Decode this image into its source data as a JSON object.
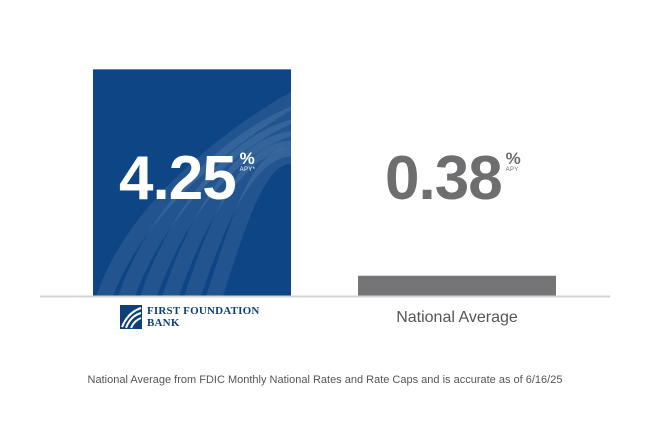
{
  "colors": {
    "primary_bar": "#0d4585",
    "secondary_bar": "#757577",
    "value_secondary": "#6e6e70",
    "baseline": "#d4d4d4"
  },
  "chart_data": {
    "type": "bar",
    "title": "",
    "xlabel": "",
    "ylabel": "",
    "ylim": [
      0,
      4.5
    ],
    "categories": [
      "FIRST FOUNDATION BANK",
      "National Average"
    ],
    "values": [
      4.25,
      0.38
    ],
    "value_labels": [
      "4.25",
      "0.38"
    ],
    "unit": "%",
    "unit_sub": [
      "APY*",
      "APY"
    ],
    "grid": false,
    "legend": "none"
  },
  "logo": {
    "line1": "FIRST FOUNDATION",
    "line2": "BANK",
    "icon": "swoosh-logo-icon"
  },
  "labels": {
    "national_average": "National Average"
  },
  "footnote": "National Average from FDIC Monthly National Rates and Rate Caps and is accurate as of 6/16/25"
}
